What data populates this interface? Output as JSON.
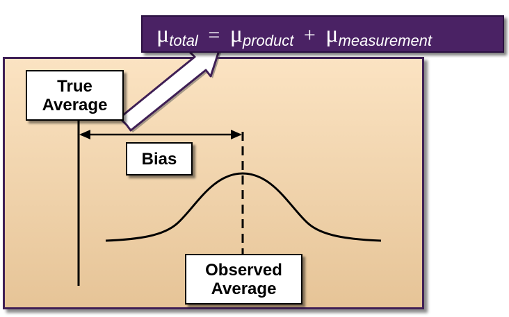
{
  "formula": {
    "mu_symbol": "μ",
    "sub_total": "total",
    "equals": "=",
    "sub_product": "product",
    "plus": "+",
    "sub_measurement": "measurement"
  },
  "labels": {
    "true_average_line1": "True",
    "true_average_line2": "Average",
    "bias": "Bias",
    "observed_average_line1": "Observed",
    "observed_average_line2": "Average"
  },
  "colors": {
    "formula_bg": "#4a2264",
    "panel_border": "#3f1f55",
    "panel_top": "#fbe3c2",
    "panel_bottom": "#e6c497"
  }
}
